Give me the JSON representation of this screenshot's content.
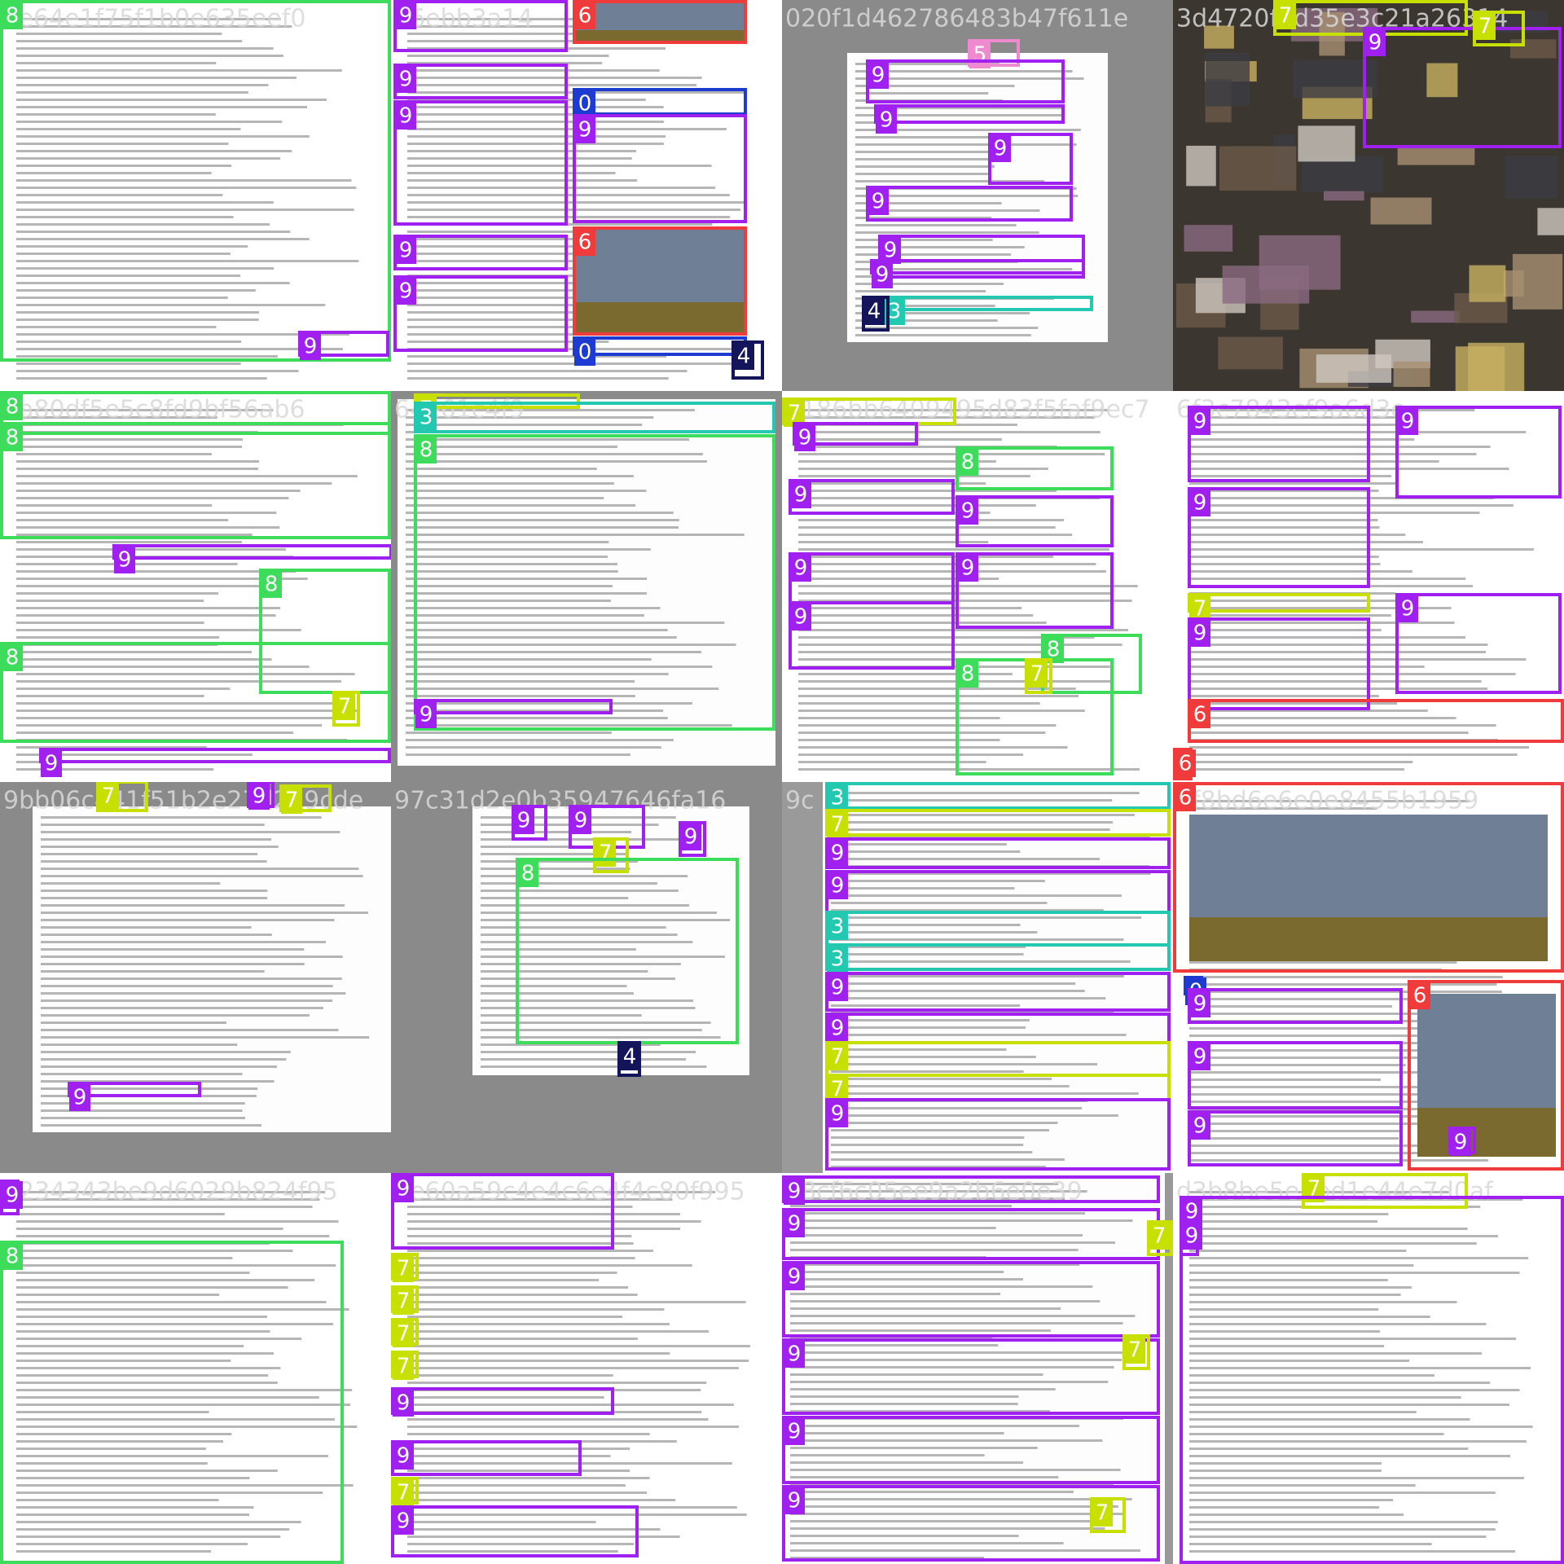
{
  "colors": {
    "0": "#1d3bd1",
    "3": "#22c9b0",
    "4": "#14145a",
    "5": "#f08ad0",
    "6": "#ef3b3b",
    "7": "#c8e000",
    "8": "#3ddc5a",
    "9": "#a020f0"
  },
  "tiles": [
    {
      "id": "ee64e1f75f1b0e635eef0",
      "boxes": [
        8,
        9
      ]
    },
    {
      "id": "76ebb3a14",
      "boxes": [
        9,
        9,
        9,
        9,
        9,
        6,
        0,
        9,
        6,
        0,
        4
      ]
    },
    {
      "id": "020f1d462786483b47f611e",
      "boxes": [
        5,
        9,
        9,
        9,
        9,
        9,
        9,
        3,
        4
      ]
    },
    {
      "id": "3d4720f1d35e3c21a26314",
      "boxes": [
        7,
        9,
        7
      ]
    },
    {
      "id": "8a80df5e5c8fd9bf56ab6",
      "boxes": [
        8,
        8,
        9,
        8,
        8,
        7,
        9
      ]
    },
    {
      "id": "64e61c4f9",
      "boxes": [
        7,
        3,
        8,
        9
      ]
    },
    {
      "id": "7186bb6409495d83f5faf9ec7",
      "boxes": [
        7,
        9,
        9,
        9,
        9,
        8,
        9,
        9,
        8,
        8,
        7
      ]
    },
    {
      "id": "6f3c7843cf9a6d3c",
      "boxes": [
        9,
        9,
        9,
        7,
        9,
        9,
        6,
        6
      ]
    },
    {
      "id": "9bb06c441f51b2e27d2a9cde",
      "boxes": [
        7,
        9,
        7,
        9
      ]
    },
    {
      "id": "97c31d2e0b35947646fa16",
      "boxes": [
        9,
        9,
        7,
        9,
        8,
        4
      ]
    },
    {
      "id": "9c",
      "boxes": [
        3,
        7,
        9,
        9,
        3,
        3,
        9,
        9,
        7,
        7,
        9
      ]
    },
    {
      "id": "4f8bd6e6e0e8455b1959",
      "boxes": [
        6,
        0,
        9,
        9,
        9,
        6,
        9
      ]
    },
    {
      "id": "5234343be9d6029b824f95",
      "boxes": [
        9,
        8
      ]
    },
    {
      "id": "6e60a59c4e4c6e4f4c80f995",
      "boxes": [
        9,
        7,
        7,
        7,
        7,
        9,
        9,
        7,
        9
      ]
    },
    {
      "id": "d8cf6c05ee9a2b6e0e39",
      "boxes": [
        9,
        9,
        9,
        9,
        9,
        9,
        7,
        7,
        7
      ]
    },
    {
      "id": "d3b8be5e3bd1e44e7d0af",
      "boxes": [
        7,
        9,
        9
      ]
    }
  ]
}
